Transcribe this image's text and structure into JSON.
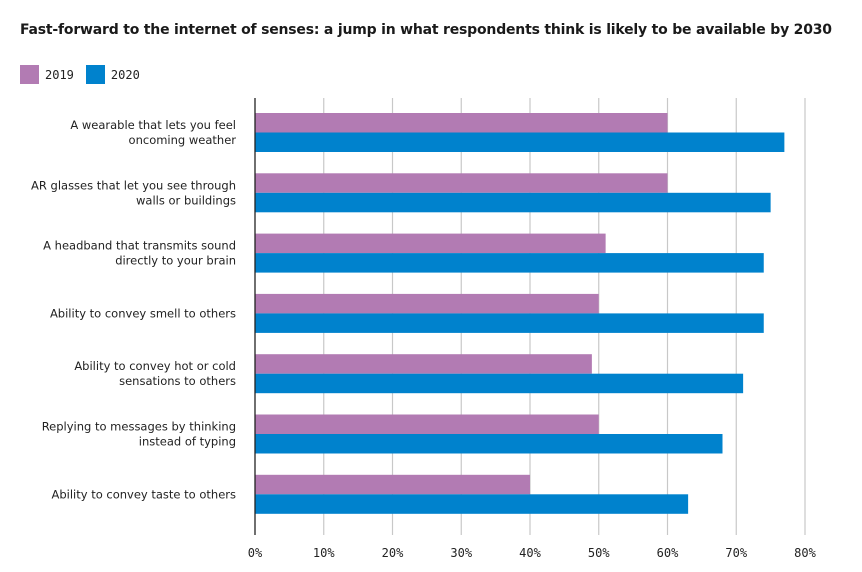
{
  "chart_data": {
    "type": "bar",
    "orientation": "horizontal",
    "title": "Fast-forward to the internet of senses: a jump in what respondents think is likely to be available by 2030",
    "xlabel": "",
    "ylabel": "",
    "xlim": [
      0,
      80
    ],
    "xticks": [
      0,
      10,
      20,
      30,
      40,
      50,
      60,
      70,
      80
    ],
    "xtick_labels": [
      "0%",
      "10%",
      "20%",
      "30%",
      "40%",
      "50%",
      "60%",
      "70%",
      "80%"
    ],
    "grid": "vertical",
    "legend_position": "top-left",
    "categories": [
      [
        "A wearable that lets you feel",
        "oncoming weather"
      ],
      [
        "AR glasses that let you see through",
        "walls or buildings"
      ],
      [
        "A headband that transmits sound",
        "directly to your brain"
      ],
      [
        "Ability to convey smell to others"
      ],
      [
        "Ability to convey hot or cold",
        "sensations to others"
      ],
      [
        "Replying to messages by thinking",
        "instead of typing"
      ],
      [
        "Ability to convey taste to others"
      ]
    ],
    "series": [
      {
        "name": "2019",
        "color": "#b27bb3",
        "values": [
          60,
          60,
          51,
          50,
          49,
          50,
          40
        ]
      },
      {
        "name": "2020",
        "color": "#0082cd",
        "values": [
          77,
          75,
          74,
          74,
          71,
          68,
          63
        ]
      }
    ]
  }
}
